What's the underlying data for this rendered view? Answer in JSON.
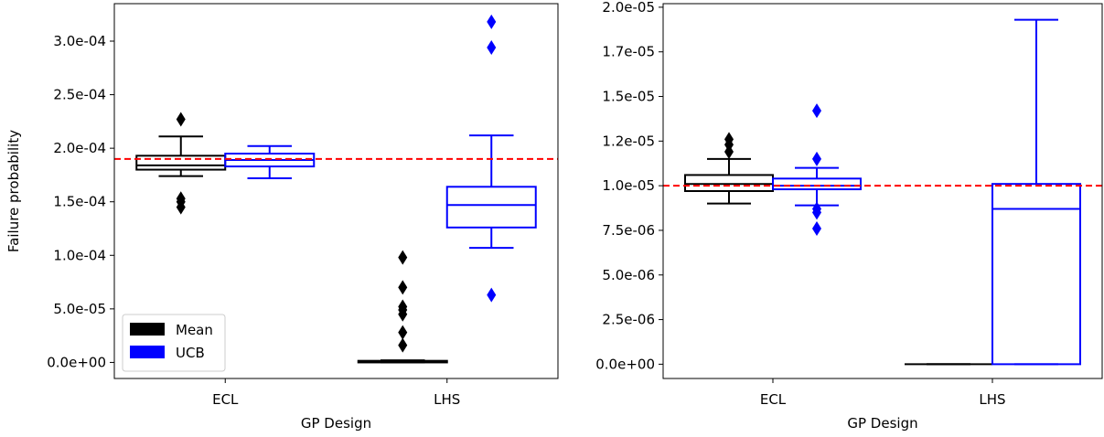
{
  "chart_data": [
    {
      "type": "box",
      "xlabel": "GP Design",
      "ylabel": "Failure probability",
      "categories": [
        "ECL",
        "LHS"
      ],
      "ylim": [
        -1.5e-05,
        0.000335
      ],
      "yticks": [
        0,
        5e-05,
        0.0001,
        0.00015,
        0.0002,
        0.00025,
        0.0003
      ],
      "ytick_labels": [
        "0.0e+00",
        "5.0e-05",
        "1.0e-04",
        "1.5e-04",
        "2.0e-04",
        "2.5e-04",
        "3.0e-04"
      ],
      "reference_line": {
        "value": 0.00019,
        "color": "#ff0000",
        "style": "dashed"
      },
      "legend": {
        "position": "lower-left",
        "entries": [
          "Mean",
          "UCB"
        ]
      },
      "series": [
        {
          "name": "Mean",
          "color": "#000000",
          "boxes": [
            {
              "category": "ECL",
              "whisker_low": 0.000174,
              "q1": 0.00018,
              "median": 0.000184,
              "q3": 0.000193,
              "whisker_high": 0.000211,
              "outliers": [
                0.000227,
                0.000153,
                0.00015,
                0.000145
              ]
            },
            {
              "category": "LHS",
              "whisker_low": 0.0,
              "q1": 0.0,
              "median": 8e-07,
              "q3": 1.5e-06,
              "whisker_high": 2e-06,
              "outliers": [
                9.8e-05,
                7e-05,
                5.2e-05,
                4.9e-05,
                4.5e-05,
                2.8e-05,
                1.6e-05
              ]
            }
          ]
        },
        {
          "name": "UCB",
          "color": "#0000ff",
          "boxes": [
            {
              "category": "ECL",
              "whisker_low": 0.000172,
              "q1": 0.000183,
              "median": 0.000189,
              "q3": 0.000195,
              "whisker_high": 0.000202,
              "outliers": []
            },
            {
              "category": "LHS",
              "whisker_low": 0.000107,
              "q1": 0.000126,
              "median": 0.000147,
              "q3": 0.000164,
              "whisker_high": 0.000212,
              "outliers": [
                0.000318,
                0.000294,
                6.3e-05
              ]
            }
          ]
        }
      ]
    },
    {
      "type": "box",
      "xlabel": "GP Design",
      "ylabel": "",
      "categories": [
        "ECL",
        "LHS"
      ],
      "ylim": [
        -8e-07,
        2.02e-05
      ],
      "yticks": [
        0,
        2.5e-06,
        5e-06,
        7.5e-06,
        1e-05,
        1.25e-05,
        1.5e-05,
        1.75e-05,
        2e-05
      ],
      "ytick_labels": [
        "0.0e+00",
        "2.5e-06",
        "5.0e-06",
        "7.5e-06",
        "1.0e-05",
        "1.2e-05",
        "1.5e-05",
        "1.7e-05",
        "2.0e-05"
      ],
      "reference_line": {
        "value": 1e-05,
        "color": "#ff0000",
        "style": "dashed"
      },
      "series": [
        {
          "name": "Mean",
          "color": "#000000",
          "boxes": [
            {
              "category": "ECL",
              "whisker_low": 9e-06,
              "q1": 9.7e-06,
              "median": 1.01e-05,
              "q3": 1.06e-05,
              "whisker_high": 1.15e-05,
              "outliers": [
                1.26e-05,
                1.23e-05,
                1.19e-05
              ]
            },
            {
              "category": "LHS",
              "whisker_low": 0.0,
              "q1": 0.0,
              "median": 0.0,
              "q3": 0.0,
              "whisker_high": 0.0,
              "outliers": []
            }
          ]
        },
        {
          "name": "UCB",
          "color": "#0000ff",
          "boxes": [
            {
              "category": "ECL",
              "whisker_low": 8.9e-06,
              "q1": 9.8e-06,
              "median": 1e-05,
              "q3": 1.04e-05,
              "whisker_high": 1.1e-05,
              "outliers": [
                1.42e-05,
                1.15e-05,
                8.7e-06,
                8.5e-06,
                7.6e-06
              ]
            },
            {
              "category": "LHS",
              "whisker_low": 0.0,
              "q1": 0.0,
              "median": 8.7e-06,
              "q3": 1.01e-05,
              "whisker_high": 1.93e-05,
              "outliers": []
            }
          ]
        }
      ]
    }
  ]
}
